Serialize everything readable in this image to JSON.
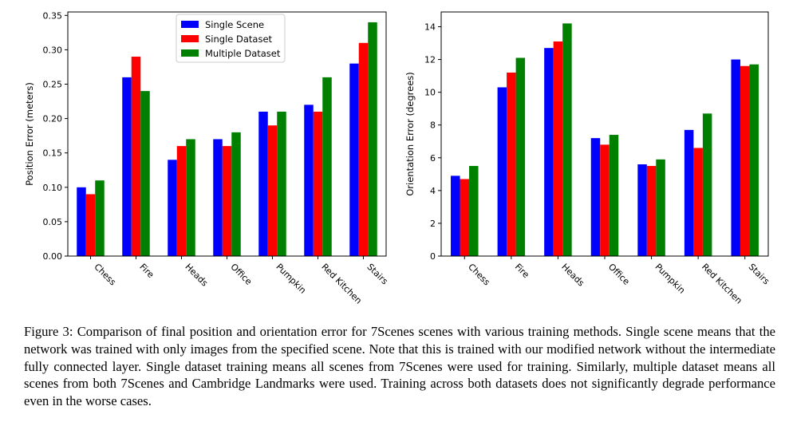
{
  "chart_data": [
    {
      "type": "bar",
      "categories": [
        "Chess",
        "Fire",
        "Heads",
        "Office",
        "Pumpkin",
        "Red Kitchen",
        "Stairs"
      ],
      "series": [
        {
          "name": "Single Scene",
          "color": "#0000ff",
          "values": [
            0.1,
            0.26,
            0.14,
            0.17,
            0.21,
            0.22,
            0.28
          ]
        },
        {
          "name": "Single Dataset",
          "color": "#ff0000",
          "values": [
            0.09,
            0.29,
            0.16,
            0.16,
            0.19,
            0.21,
            0.31
          ]
        },
        {
          "name": "Multiple Dataset",
          "color": "#008000",
          "values": [
            0.11,
            0.24,
            0.17,
            0.18,
            0.21,
            0.26,
            0.34
          ]
        }
      ],
      "ylabel": "Position Error (meters)",
      "ylim": [
        0,
        0.355
      ],
      "yticks": [
        "0.00",
        "0.05",
        "0.10",
        "0.15",
        "0.20",
        "0.25",
        "0.30",
        "0.35"
      ],
      "legend": "top-center",
      "grid": false
    },
    {
      "type": "bar",
      "categories": [
        "Chess",
        "Fire",
        "Heads",
        "Office",
        "Pumpkin",
        "Red Kitchen",
        "Stairs"
      ],
      "series": [
        {
          "name": "Single Scene",
          "color": "#0000ff",
          "values": [
            4.9,
            10.3,
            12.7,
            7.2,
            5.6,
            7.7,
            12.0
          ]
        },
        {
          "name": "Single Dataset",
          "color": "#ff0000",
          "values": [
            4.7,
            11.2,
            13.1,
            6.8,
            5.5,
            6.6,
            11.6
          ]
        },
        {
          "name": "Multiple Dataset",
          "color": "#008000",
          "values": [
            5.5,
            12.1,
            14.2,
            7.4,
            5.9,
            8.7,
            11.7
          ]
        }
      ],
      "ylabel": "Orientation Error (degrees)",
      "ylim": [
        0,
        14.9
      ],
      "yticks": [
        "0",
        "2",
        "4",
        "6",
        "8",
        "10",
        "12",
        "14"
      ],
      "legend": "none",
      "grid": false
    }
  ],
  "caption": "Figure 3: Comparison of final position and orientation error for 7Scenes scenes with various training methods. Single scene means that the network was trained with only images from the specified scene. Note that this is trained with our modified network without the intermediate fully connected layer. Single dataset training means all scenes from 7Scenes were used for training. Similarly, multiple dataset means all scenes from both 7Scenes and Cambridge Landmarks were used. Training across both datasets does not significantly degrade performance even in the worse cases."
}
